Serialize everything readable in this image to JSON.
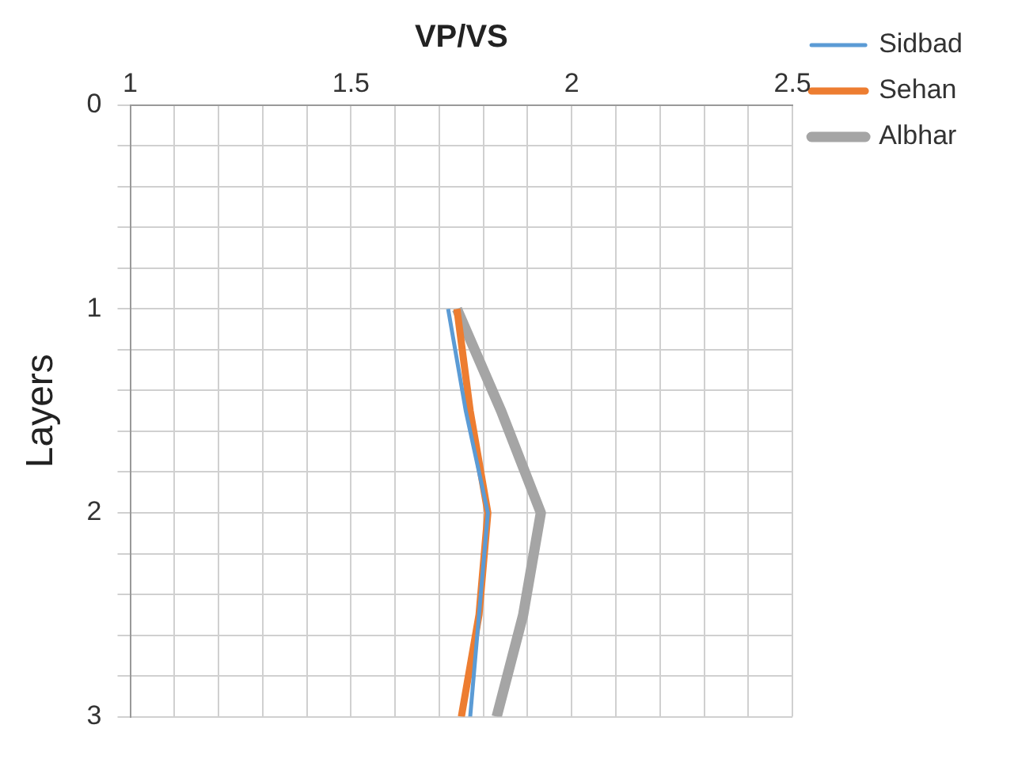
{
  "chart_data": {
    "type": "line",
    "orientation": "horizontal",
    "xlabel": "VP/VS",
    "ylabel": "Layers",
    "x": [
      1,
      1.5,
      2,
      2.5,
      3
    ],
    "series": [
      {
        "name": "Sidbad",
        "color": "#5b9bd5",
        "values": [
          1.72,
          1.76,
          1.81,
          1.79,
          1.77
        ]
      },
      {
        "name": "Sehan",
        "color": "#ed7d31",
        "values": [
          1.74,
          1.77,
          1.81,
          1.79,
          1.75
        ]
      },
      {
        "name": "Albhar",
        "color": "#a5a5a5",
        "values": [
          1.74,
          1.84,
          1.93,
          1.89,
          1.83
        ]
      }
    ],
    "xlim": [
      1,
      2.5
    ],
    "xticks": [
      1,
      {
        "value": 1.1,
        "label": null
      },
      {
        "value": 1.2,
        "label": null
      },
      {
        "value": 1.3,
        "label": null
      },
      {
        "value": 1.4,
        "label": null
      },
      1.5,
      {
        "value": 1.6,
        "label": null
      },
      {
        "value": 1.7,
        "label": null
      },
      {
        "value": 1.8,
        "label": null
      },
      {
        "value": 1.9,
        "label": null
      },
      2,
      {
        "value": 2.1,
        "label": null
      },
      {
        "value": 2.2,
        "label": null
      },
      {
        "value": 2.3,
        "label": null
      },
      {
        "value": 2.4,
        "label": null
      },
      2.5
    ],
    "ylim": [
      3,
      0
    ],
    "yticks": [
      0,
      {
        "value": 0.2,
        "label": null
      },
      {
        "value": 0.4,
        "label": null
      },
      {
        "value": 0.6,
        "label": null
      },
      {
        "value": 0.8,
        "label": null
      },
      1,
      {
        "value": 1.2,
        "label": null
      },
      {
        "value": 1.4,
        "label": null
      },
      {
        "value": 1.6,
        "label": null
      },
      {
        "value": 1.8,
        "label": null
      },
      2,
      {
        "value": 2.2,
        "label": null
      },
      {
        "value": 2.4,
        "label": null
      },
      {
        "value": 2.6,
        "label": null
      },
      {
        "value": 2.8,
        "label": null
      },
      3
    ],
    "grid": true,
    "legend": "top right",
    "marker": "none",
    "line_style": "solid"
  }
}
